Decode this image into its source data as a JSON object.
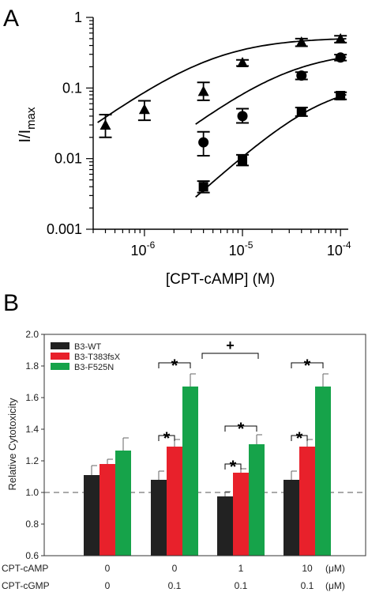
{
  "chart_data": [
    {
      "type": "scatter",
      "panel_label": "A",
      "xlabel": "[CPT-cAMP] (M)",
      "ylabel_main": "I/I",
      "ylabel_sub": "max",
      "xscale": "log",
      "yscale": "log",
      "xlim": [
        3e-07,
        0.00012
      ],
      "ylim": [
        0.001,
        1
      ],
      "x_ticks": [
        {
          "value": 1e-06,
          "base": "10",
          "exp": "-6"
        },
        {
          "value": 1e-05,
          "base": "10",
          "exp": "-5"
        },
        {
          "value": 0.0001,
          "base": "10",
          "exp": "-4"
        }
      ],
      "y_ticks": [
        {
          "value": 0.001,
          "label": "0.001"
        },
        {
          "value": 0.01,
          "label": "0.01"
        },
        {
          "value": 0.1,
          "label": "0.1"
        },
        {
          "value": 1,
          "label": "1"
        }
      ],
      "grid": false,
      "series": [
        {
          "marker": "triangle",
          "x": [
            4e-07,
            1e-06,
            4e-06,
            1e-05,
            4e-05,
            0.0001
          ],
          "y": [
            0.03,
            0.05,
            0.09,
            0.23,
            0.45,
            0.5
          ],
          "err_low": [
            0.02,
            0.035,
            0.067,
            0.205,
            0.39,
            0.44
          ],
          "err_high": [
            0.042,
            0.066,
            0.12,
            0.25,
            0.5,
            0.55
          ],
          "fit": {
            "ymax": 0.52,
            "k": 5e-06,
            "n": 1
          }
        },
        {
          "marker": "circle",
          "x": [
            4e-06,
            1e-05,
            4e-05,
            0.0001
          ],
          "y": [
            0.017,
            0.04,
            0.15,
            0.27
          ],
          "err_low": [
            0.011,
            0.032,
            0.132,
            0.245
          ],
          "err_high": [
            0.024,
            0.051,
            0.168,
            0.297
          ],
          "fit": {
            "ymax": 0.34,
            "k": 3e-05,
            "n": 1.05
          }
        },
        {
          "marker": "square",
          "x": [
            4e-06,
            1e-05,
            4e-05,
            0.0001
          ],
          "y": [
            0.004,
            0.0095,
            0.046,
            0.078
          ],
          "err_low": [
            0.0033,
            0.008,
            0.04,
            0.069
          ],
          "err_high": [
            0.0048,
            0.0113,
            0.053,
            0.087
          ],
          "fit": {
            "ymax": 0.12,
            "k": 6.5e-05,
            "n": 1.25
          }
        }
      ]
    },
    {
      "type": "bar",
      "panel_label": "B",
      "ylabel": "Relative Cytotoxicity",
      "ylim": [
        0.6,
        2.0
      ],
      "y_ticks": [
        "0.6",
        "0.8",
        "1.0",
        "1.2",
        "1.4",
        "1.6",
        "1.8",
        "2.0"
      ],
      "reference_line": 1.0,
      "grid": false,
      "legend_position": "top-left",
      "series": [
        {
          "name": "B3-WT",
          "color": "#222222",
          "values": [
            1.11,
            1.08,
            0.975,
            1.08
          ],
          "errors": [
            0.06,
            0.055,
            0.03,
            0.055
          ]
        },
        {
          "name": "B3-T383fsX",
          "color": "#e8212b",
          "values": [
            1.18,
            1.29,
            1.125,
            1.29
          ],
          "errors": [
            0.03,
            0.045,
            0.025,
            0.045
          ]
        },
        {
          "name": "B3-F525N",
          "color": "#16a34a",
          "values": [
            1.265,
            1.67,
            1.305,
            1.67
          ],
          "errors": [
            0.08,
            0.08,
            0.06,
            0.08
          ]
        }
      ],
      "significance": [
        {
          "group": 1,
          "from": 0,
          "to": 2,
          "level": 1.82,
          "symbol": "*"
        },
        {
          "group": 1,
          "from": 0,
          "to": 1,
          "level": 1.36,
          "symbol": "*"
        },
        {
          "group": 2,
          "from": 0,
          "to": 2,
          "level": 1.42,
          "symbol": "*"
        },
        {
          "group": 2,
          "from": 0,
          "to": 1,
          "level": 1.18,
          "symbol": "*"
        },
        {
          "group": 3,
          "from": 0,
          "to": 2,
          "level": 1.82,
          "symbol": "*"
        },
        {
          "group": 3,
          "from": 0,
          "to": 1,
          "level": 1.36,
          "symbol": "*"
        }
      ],
      "cross_comparison": {
        "from_group": 1,
        "to_group": 2,
        "level": 1.88,
        "symbol": "+"
      },
      "condition_rows": [
        {
          "label": "CPT-cAMP",
          "values": [
            "0",
            "0",
            "1",
            "10"
          ],
          "unit": "(μM)"
        },
        {
          "label": "CPT-cGMP",
          "values": [
            "0",
            "0.1",
            "0.1",
            "0.1"
          ],
          "unit": "(μM)"
        }
      ]
    }
  ]
}
